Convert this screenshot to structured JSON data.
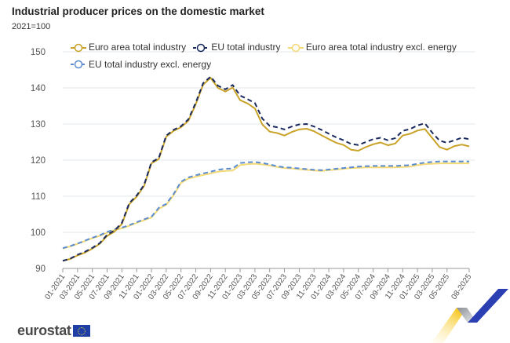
{
  "header": {
    "title": "Industrial producer prices on the domestic market",
    "subtitle": "2021=100"
  },
  "legend": [
    {
      "label": "Euro area total industry",
      "color": "#c9a227",
      "dashed": false
    },
    {
      "label": "EU total industry",
      "color": "#1b2a5e",
      "dashed": true
    },
    {
      "label": "Euro area total industry excl. energy",
      "color": "#f3d977",
      "dashed": false
    },
    {
      "label": "EU total industry excl. energy",
      "color": "#5b8ccf",
      "dashed": true
    }
  ],
  "footer": {
    "brand": "eurostat"
  },
  "chart_data": {
    "type": "line",
    "title": "Industrial producer prices on the domestic market",
    "subtitle": "2021=100",
    "xlabel": "",
    "ylabel": "",
    "ylim": [
      90,
      150
    ],
    "yticks": [
      90,
      100,
      110,
      120,
      130,
      140,
      150
    ],
    "grid": true,
    "legend_position": "top",
    "x": [
      "01-2021",
      "02-2021",
      "03-2021",
      "04-2021",
      "05-2021",
      "06-2021",
      "07-2021",
      "08-2021",
      "09-2021",
      "10-2021",
      "11-2021",
      "12-2021",
      "01-2022",
      "02-2022",
      "03-2022",
      "04-2022",
      "05-2022",
      "06-2022",
      "07-2022",
      "08-2022",
      "09-2022",
      "10-2022",
      "11-2022",
      "12-2022",
      "01-2023",
      "02-2023",
      "03-2023",
      "04-2023",
      "05-2023",
      "06-2023",
      "07-2023",
      "08-2023",
      "09-2023",
      "10-2023",
      "11-2023",
      "12-2023",
      "01-2024",
      "02-2024",
      "03-2024",
      "04-2024",
      "05-2024",
      "06-2024",
      "07-2024",
      "08-2024",
      "09-2024",
      "10-2024",
      "11-2024",
      "12-2024",
      "01-2025",
      "02-2025",
      "03-2025",
      "04-2025",
      "05-2025",
      "06-2025",
      "07-2025",
      "08-2025"
    ],
    "xtick_labels": [
      "01-2021",
      "03-2021",
      "05-2021",
      "07-2021",
      "09-2021",
      "11-2021",
      "01-2022",
      "03-2022",
      "05-2022",
      "07-2022",
      "09-2022",
      "11-2022",
      "01-2023",
      "03-2023",
      "05-2023",
      "07-2023",
      "09-2023",
      "11-2023",
      "01-2024",
      "03-2024",
      "05-2024",
      "07-2024",
      "09-2024",
      "11-2024",
      "01-2025",
      "03-2025",
      "05-2025",
      "08-2025"
    ],
    "series": [
      {
        "name": "Euro area total industry",
        "values": [
          92.1,
          92.6,
          93.6,
          94.4,
          95.5,
          96.8,
          99.0,
          100.2,
          102.3,
          107.8,
          109.9,
          112.8,
          119.1,
          120.3,
          126.5,
          128.1,
          129.1,
          130.9,
          135.5,
          140.9,
          142.8,
          140.0,
          139.0,
          140.1,
          136.6,
          135.7,
          134.3,
          129.9,
          127.9,
          127.5,
          126.8,
          127.8,
          128.5,
          128.7,
          128.0,
          126.9,
          125.8,
          124.8,
          124.2,
          122.9,
          122.6,
          123.6,
          124.4,
          124.9,
          124.1,
          124.6,
          126.8,
          127.3,
          128.2,
          128.6,
          126.1,
          123.6,
          122.9,
          123.9,
          124.3,
          123.8
        ]
      },
      {
        "name": "EU total industry",
        "values": [
          92.1,
          92.7,
          93.8,
          94.6,
          95.7,
          97.0,
          99.3,
          100.5,
          102.6,
          108.1,
          110.2,
          113.1,
          119.4,
          120.6,
          126.8,
          128.4,
          129.4,
          131.3,
          135.9,
          141.3,
          143.1,
          140.6,
          139.6,
          140.8,
          137.9,
          136.9,
          135.8,
          131.5,
          129.5,
          129.1,
          128.5,
          129.3,
          129.9,
          130.0,
          129.3,
          128.4,
          127.3,
          126.3,
          125.5,
          124.5,
          124.2,
          125.0,
          125.8,
          126.2,
          125.5,
          126.1,
          128.1,
          128.6,
          129.6,
          130.2,
          127.6,
          125.4,
          124.8,
          125.5,
          126.2,
          125.8
        ]
      },
      {
        "name": "Euro area total industry excl. energy",
        "values": [
          95.5,
          96.1,
          96.8,
          97.6,
          98.4,
          99.0,
          99.9,
          100.6,
          101.1,
          101.8,
          102.6,
          103.4,
          104.1,
          106.5,
          107.6,
          110.3,
          113.7,
          114.9,
          115.4,
          115.9,
          116.3,
          116.8,
          117.0,
          117.1,
          118.6,
          118.9,
          119.0,
          118.8,
          118.5,
          118.1,
          117.8,
          117.7,
          117.5,
          117.3,
          117.1,
          117.0,
          117.2,
          117.4,
          117.6,
          117.8,
          117.9,
          118.0,
          118.0,
          118.0,
          118.0,
          118.0,
          118.1,
          118.2,
          118.6,
          118.9,
          119.0,
          119.1,
          119.1,
          119.1,
          119.1,
          119.1
        ]
      },
      {
        "name": "EU total industry excl. energy",
        "values": [
          95.6,
          96.2,
          96.9,
          97.7,
          98.5,
          99.2,
          100.1,
          100.8,
          101.3,
          102.0,
          102.8,
          103.6,
          104.3,
          106.8,
          107.9,
          110.6,
          114.0,
          115.2,
          115.8,
          116.3,
          116.8,
          117.3,
          117.6,
          117.7,
          119.2,
          119.4,
          119.5,
          119.2,
          118.8,
          118.3,
          118.0,
          117.9,
          117.7,
          117.5,
          117.3,
          117.2,
          117.4,
          117.6,
          117.8,
          118.0,
          118.2,
          118.3,
          118.4,
          118.4,
          118.4,
          118.4,
          118.5,
          118.6,
          119.0,
          119.3,
          119.5,
          119.6,
          119.6,
          119.6,
          119.6,
          119.6
        ]
      }
    ]
  }
}
